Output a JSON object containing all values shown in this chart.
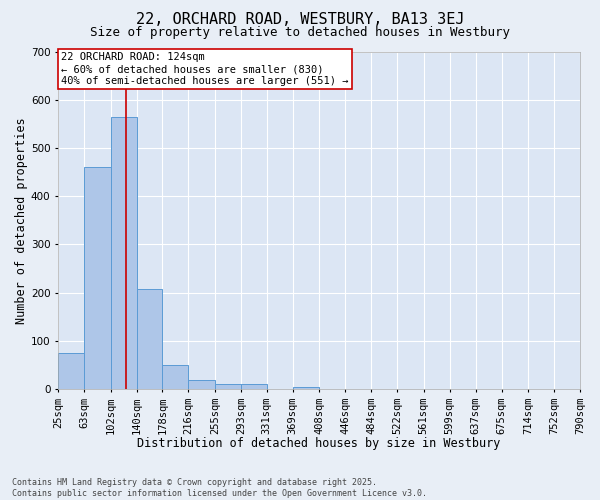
{
  "title": "22, ORCHARD ROAD, WESTBURY, BA13 3EJ",
  "subtitle": "Size of property relative to detached houses in Westbury",
  "xlabel": "Distribution of detached houses by size in Westbury",
  "ylabel": "Number of detached properties",
  "footnote": "Contains HM Land Registry data © Crown copyright and database right 2025.\nContains public sector information licensed under the Open Government Licence v3.0.",
  "bins": [
    25,
    63,
    102,
    140,
    178,
    216,
    255,
    293,
    331,
    369,
    408,
    446,
    484,
    522,
    561,
    599,
    637,
    675,
    714,
    752,
    790
  ],
  "bin_labels": [
    "25sqm",
    "63sqm",
    "102sqm",
    "140sqm",
    "178sqm",
    "216sqm",
    "255sqm",
    "293sqm",
    "331sqm",
    "369sqm",
    "408sqm",
    "446sqm",
    "484sqm",
    "522sqm",
    "561sqm",
    "599sqm",
    "637sqm",
    "675sqm",
    "714sqm",
    "752sqm",
    "790sqm"
  ],
  "counts": [
    75,
    460,
    565,
    207,
    50,
    18,
    10,
    10,
    0,
    5,
    0,
    0,
    0,
    0,
    0,
    0,
    0,
    0,
    0,
    0
  ],
  "bar_color": "#aec6e8",
  "bar_edge_color": "#5b9bd5",
  "red_line_x": 124,
  "annotation_line1": "22 ORCHARD ROAD: 124sqm",
  "annotation_line2": "← 60% of detached houses are smaller (830)",
  "annotation_line3": "40% of semi-detached houses are larger (551) →",
  "annotation_box_color": "#ffffff",
  "annotation_box_edge_color": "#cc0000",
  "background_color": "#e8eef6",
  "plot_bg_color": "#dce6f4",
  "grid_color": "#ffffff",
  "ylim": [
    0,
    700
  ],
  "yticks": [
    0,
    100,
    200,
    300,
    400,
    500,
    600,
    700
  ],
  "title_fontsize": 11,
  "subtitle_fontsize": 9,
  "axis_label_fontsize": 8.5,
  "tick_fontsize": 7.5,
  "annotation_fontsize": 7.5,
  "footnote_fontsize": 6
}
